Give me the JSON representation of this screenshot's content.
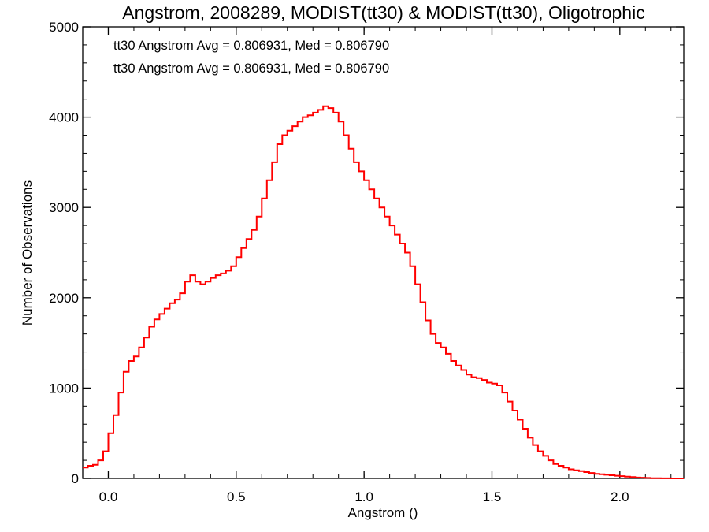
{
  "chart_data": {
    "type": "line",
    "title": "Angstrom, 2008289, MODIST(tt30) & MODIST(tt30), Oligotrophic",
    "xlabel": "Angstrom ()",
    "ylabel": "Number of Observations",
    "xlim": [
      -0.1,
      2.25
    ],
    "ylim": [
      0,
      5000
    ],
    "x_ticks": [
      0.0,
      0.5,
      1.0,
      1.5,
      2.0
    ],
    "x_tick_labels": [
      "0.0",
      "0.5",
      "1.0",
      "1.5",
      "2.0"
    ],
    "y_ticks": [
      0,
      1000,
      2000,
      3000,
      4000,
      5000
    ],
    "y_tick_labels": [
      "0",
      "1000",
      "2000",
      "3000",
      "4000",
      "5000"
    ],
    "grid": false,
    "step": true,
    "annotations": [
      {
        "text": "tt30 Angstrom Avg = 0.806931, Med = 0.806790",
        "color": "#000000"
      },
      {
        "text": "tt30 Angstrom Avg = 0.806931, Med = 0.806790",
        "color": "#ff0000"
      }
    ],
    "series": [
      {
        "color": "#ff0000",
        "points": [
          [
            -0.1,
            120
          ],
          [
            -0.08,
            140
          ],
          [
            -0.06,
            150
          ],
          [
            -0.04,
            200
          ],
          [
            -0.02,
            300
          ],
          [
            0.0,
            500
          ],
          [
            0.02,
            700
          ],
          [
            0.04,
            950
          ],
          [
            0.06,
            1180
          ],
          [
            0.08,
            1300
          ],
          [
            0.1,
            1350
          ],
          [
            0.12,
            1450
          ],
          [
            0.14,
            1560
          ],
          [
            0.16,
            1680
          ],
          [
            0.18,
            1760
          ],
          [
            0.2,
            1820
          ],
          [
            0.22,
            1880
          ],
          [
            0.24,
            1940
          ],
          [
            0.26,
            1980
          ],
          [
            0.28,
            2050
          ],
          [
            0.3,
            2180
          ],
          [
            0.32,
            2250
          ],
          [
            0.34,
            2180
          ],
          [
            0.36,
            2150
          ],
          [
            0.38,
            2180
          ],
          [
            0.4,
            2220
          ],
          [
            0.42,
            2250
          ],
          [
            0.44,
            2270
          ],
          [
            0.46,
            2300
          ],
          [
            0.48,
            2350
          ],
          [
            0.5,
            2450
          ],
          [
            0.52,
            2550
          ],
          [
            0.54,
            2650
          ],
          [
            0.56,
            2750
          ],
          [
            0.58,
            2900
          ],
          [
            0.6,
            3100
          ],
          [
            0.62,
            3300
          ],
          [
            0.64,
            3500
          ],
          [
            0.66,
            3700
          ],
          [
            0.68,
            3800
          ],
          [
            0.7,
            3850
          ],
          [
            0.72,
            3900
          ],
          [
            0.74,
            3950
          ],
          [
            0.76,
            4000
          ],
          [
            0.78,
            4020
          ],
          [
            0.8,
            4050
          ],
          [
            0.82,
            4080
          ],
          [
            0.84,
            4120
          ],
          [
            0.86,
            4100
          ],
          [
            0.88,
            4050
          ],
          [
            0.9,
            3950
          ],
          [
            0.92,
            3800
          ],
          [
            0.94,
            3650
          ],
          [
            0.96,
            3500
          ],
          [
            0.98,
            3400
          ],
          [
            1.0,
            3300
          ],
          [
            1.02,
            3200
          ],
          [
            1.04,
            3100
          ],
          [
            1.06,
            3000
          ],
          [
            1.08,
            2900
          ],
          [
            1.1,
            2800
          ],
          [
            1.12,
            2700
          ],
          [
            1.14,
            2600
          ],
          [
            1.16,
            2500
          ],
          [
            1.18,
            2350
          ],
          [
            1.2,
            2150
          ],
          [
            1.22,
            1950
          ],
          [
            1.24,
            1750
          ],
          [
            1.26,
            1600
          ],
          [
            1.28,
            1500
          ],
          [
            1.3,
            1450
          ],
          [
            1.32,
            1380
          ],
          [
            1.34,
            1300
          ],
          [
            1.36,
            1250
          ],
          [
            1.38,
            1200
          ],
          [
            1.4,
            1150
          ],
          [
            1.42,
            1120
          ],
          [
            1.44,
            1110
          ],
          [
            1.46,
            1090
          ],
          [
            1.48,
            1060
          ],
          [
            1.5,
            1050
          ],
          [
            1.52,
            1030
          ],
          [
            1.54,
            950
          ],
          [
            1.56,
            850
          ],
          [
            1.58,
            750
          ],
          [
            1.6,
            650
          ],
          [
            1.62,
            550
          ],
          [
            1.64,
            450
          ],
          [
            1.66,
            370
          ],
          [
            1.68,
            300
          ],
          [
            1.7,
            250
          ],
          [
            1.72,
            200
          ],
          [
            1.74,
            160
          ],
          [
            1.76,
            140
          ],
          [
            1.78,
            120
          ],
          [
            1.8,
            100
          ],
          [
            1.82,
            90
          ],
          [
            1.84,
            80
          ],
          [
            1.86,
            70
          ],
          [
            1.88,
            60
          ],
          [
            1.9,
            50
          ],
          [
            1.92,
            45
          ],
          [
            1.94,
            40
          ],
          [
            1.96,
            35
          ],
          [
            1.98,
            30
          ],
          [
            2.0,
            25
          ],
          [
            2.02,
            20
          ],
          [
            2.04,
            15
          ],
          [
            2.06,
            10
          ],
          [
            2.08,
            8
          ],
          [
            2.1,
            5
          ],
          [
            2.12,
            3
          ],
          [
            2.14,
            2
          ],
          [
            2.16,
            1
          ],
          [
            2.18,
            1
          ],
          [
            2.2,
            0
          ],
          [
            2.22,
            0
          ],
          [
            2.24,
            0
          ],
          [
            2.25,
            0
          ]
        ]
      }
    ]
  }
}
